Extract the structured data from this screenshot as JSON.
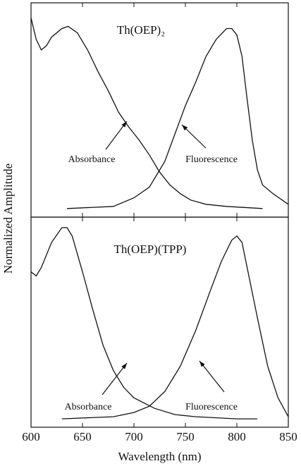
{
  "chart_data": [
    {
      "type": "line",
      "title": "Th(OEP)₂",
      "ylabel": "Normalized Amplitude",
      "xlim": [
        600,
        850
      ],
      "ylim": [
        0,
        1
      ],
      "annotations": [
        "Absorbance",
        "Fluorescence"
      ],
      "series": [
        {
          "name": "Absorbance",
          "color": "#111",
          "x": [
            600,
            605,
            610,
            615,
            620,
            630,
            636,
            645,
            655,
            665,
            675,
            685,
            695,
            705,
            715,
            725,
            735,
            745,
            755,
            770,
            790,
            825
          ],
          "values": [
            0.93,
            0.83,
            0.78,
            0.8,
            0.84,
            0.88,
            0.89,
            0.86,
            0.78,
            0.68,
            0.59,
            0.49,
            0.42,
            0.36,
            0.29,
            0.21,
            0.15,
            0.11,
            0.08,
            0.06,
            0.05,
            0.04
          ]
        },
        {
          "name": "Fluorescence",
          "color": "#111",
          "x": [
            635,
            680,
            700,
            715,
            730,
            740,
            750,
            760,
            770,
            780,
            790,
            795,
            800,
            805,
            810,
            815,
            820,
            825,
            835,
            850
          ],
          "values": [
            0.04,
            0.05,
            0.09,
            0.14,
            0.26,
            0.39,
            0.52,
            0.63,
            0.75,
            0.83,
            0.88,
            0.88,
            0.85,
            0.75,
            0.55,
            0.36,
            0.22,
            0.15,
            0.11,
            0.06
          ]
        }
      ]
    },
    {
      "type": "line",
      "title": "Th(OEP)(TPP)",
      "xlabel": "Wavelength (nm)",
      "xlim": [
        600,
        850
      ],
      "xticks": [
        600,
        650,
        700,
        750,
        800,
        850
      ],
      "ylim": [
        0,
        1
      ],
      "annotations": [
        "Absorbance",
        "Fluorescence"
      ],
      "series": [
        {
          "name": "Absorbance",
          "color": "#111",
          "x": [
            600,
            605,
            610,
            620,
            630,
            635,
            640,
            650,
            660,
            670,
            680,
            690,
            700,
            720,
            740,
            760,
            800,
            820
          ],
          "values": [
            0.74,
            0.72,
            0.76,
            0.88,
            0.95,
            0.95,
            0.91,
            0.74,
            0.56,
            0.39,
            0.27,
            0.19,
            0.14,
            0.09,
            0.06,
            0.05,
            0.04,
            0.04
          ]
        },
        {
          "name": "Fluorescence",
          "color": "#111",
          "x": [
            630,
            680,
            700,
            715,
            730,
            745,
            760,
            775,
            785,
            795,
            800,
            805,
            810,
            820,
            830,
            840,
            850
          ],
          "values": [
            0.04,
            0.05,
            0.07,
            0.1,
            0.17,
            0.29,
            0.46,
            0.66,
            0.79,
            0.89,
            0.91,
            0.88,
            0.76,
            0.52,
            0.29,
            0.14,
            0.05
          ]
        }
      ]
    }
  ]
}
